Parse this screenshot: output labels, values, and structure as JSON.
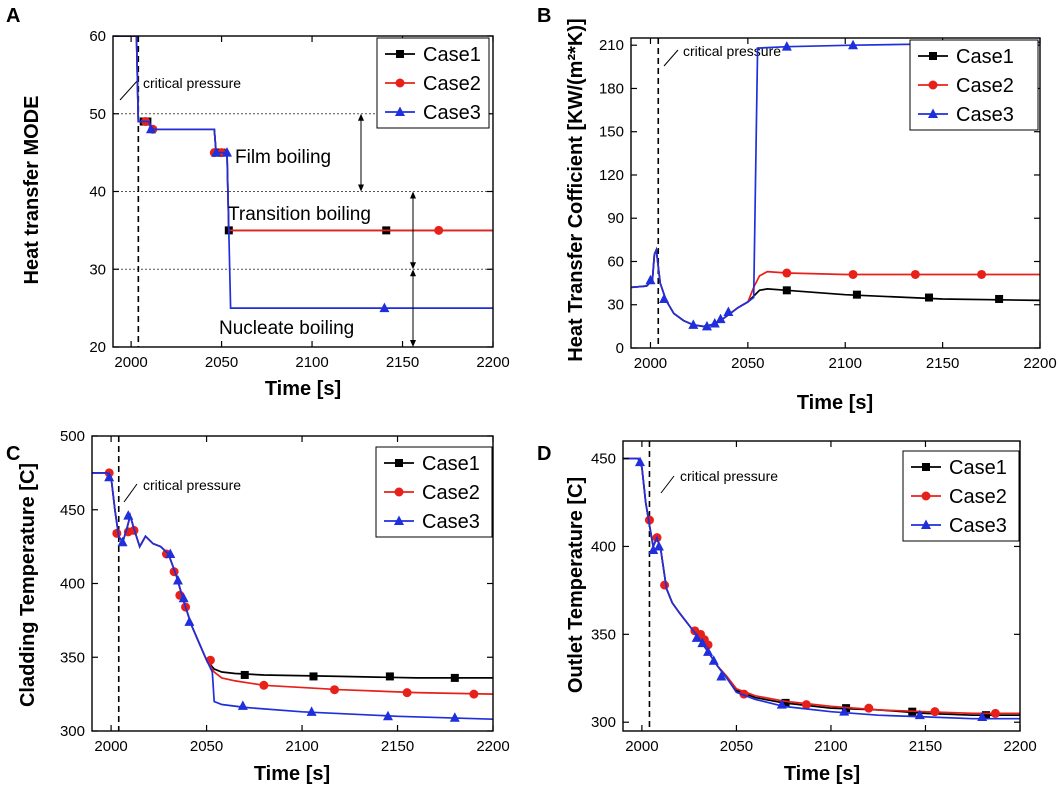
{
  "colors": {
    "Case1": "#000000",
    "Case2": "#e8201a",
    "Case3": "#1f2fdc"
  },
  "chart_data": [
    {
      "panel": "A",
      "type": "line",
      "xlabel": "Time [s]",
      "ylabel": "Heat transfer MODE",
      "xlim": [
        1990,
        2200
      ],
      "ylim": [
        20,
        60
      ],
      "xticks": [
        2000,
        2050,
        2100,
        2150,
        2200
      ],
      "yticks": [
        20,
        30,
        40,
        50,
        60
      ],
      "critical_time": 2004,
      "critical_label": "critical pressure",
      "hlines": [
        30,
        40,
        50
      ],
      "regions": [
        {
          "label": "Film boiling",
          "from": 40,
          "to": 50
        },
        {
          "label": "Transition boiling",
          "from": 30,
          "to": 40
        },
        {
          "label": "Nucleate boiling",
          "from": 20,
          "to": 30
        }
      ],
      "legend": [
        "Case1",
        "Case2",
        "Case3"
      ],
      "series": [
        {
          "name": "Case1",
          "x": [
            1990,
            2003,
            2004,
            2005,
            2006,
            2006,
            2010,
            2011,
            2046,
            2047,
            2053,
            2054,
            2200
          ],
          "y": [
            60,
            60,
            49,
            49,
            49,
            49,
            49,
            48,
            48,
            45,
            45,
            35,
            35
          ],
          "markers_x": [
            2007,
            2009,
            2047,
            2050,
            2054,
            2141
          ],
          "markers_y": [
            49,
            49,
            45,
            45,
            35,
            35
          ]
        },
        {
          "name": "Case2",
          "x": [
            1990,
            2003,
            2004,
            2005,
            2006,
            2010,
            2011,
            2046,
            2047,
            2053,
            2054,
            2200
          ],
          "y": [
            60,
            60,
            49,
            49,
            49,
            49,
            48,
            48,
            45,
            45,
            35,
            35
          ],
          "markers_x": [
            2008,
            2012,
            2046,
            2050,
            2170
          ],
          "markers_y": [
            49,
            48,
            45,
            45,
            35
          ]
        },
        {
          "name": "Case3",
          "x": [
            1990,
            2003,
            2004,
            2005,
            2006,
            2010,
            2011,
            2046,
            2047,
            2053,
            2054,
            2055,
            2200
          ],
          "y": [
            60,
            60,
            49,
            49,
            49,
            49,
            48,
            48,
            45,
            45,
            35,
            25,
            25
          ],
          "markers_x": [
            2011,
            2047,
            2053,
            2140
          ],
          "markers_y": [
            48,
            45,
            45,
            25
          ]
        }
      ]
    },
    {
      "panel": "B",
      "type": "line",
      "xlabel": "Time [s]",
      "ylabel": "Heat Transfer Cofficient [KW/(m²*K)]",
      "xlim": [
        1990,
        2200
      ],
      "ylim": [
        0,
        215
      ],
      "xticks": [
        2000,
        2050,
        2100,
        2150,
        2200
      ],
      "yticks": [
        0,
        30,
        60,
        90,
        120,
        150,
        180,
        210
      ],
      "critical_time": 2004,
      "critical_label": "critical pressure",
      "legend": [
        "Case1",
        "Case2",
        "Case3"
      ],
      "series": [
        {
          "name": "Case1",
          "x": [
            1990,
            1998,
            2001,
            2002,
            2003,
            2005,
            2008,
            2012,
            2017,
            2022,
            2027,
            2031,
            2035,
            2040,
            2045,
            2050,
            2053,
            2056,
            2060,
            2070,
            2100,
            2150,
            2200
          ],
          "y": [
            42,
            43,
            47,
            65,
            68,
            45,
            33,
            24,
            19,
            16,
            15,
            16,
            18,
            23,
            28,
            32,
            36,
            40,
            41,
            40,
            37,
            34,
            33
          ],
          "markers_x": [
            2070,
            2106,
            2143,
            2179
          ],
          "markers_y": [
            40,
            37,
            35,
            34
          ]
        },
        {
          "name": "Case2",
          "x": [
            1990,
            1998,
            2001,
            2002,
            2003,
            2005,
            2008,
            2012,
            2017,
            2022,
            2027,
            2031,
            2035,
            2040,
            2045,
            2050,
            2053,
            2056,
            2060,
            2070,
            2100,
            2150,
            2200
          ],
          "y": [
            42,
            43,
            47,
            65,
            68,
            45,
            33,
            24,
            19,
            16,
            15,
            16,
            18,
            23,
            28,
            32,
            42,
            50,
            53,
            52,
            51,
            51,
            51
          ],
          "markers_x": [
            2070,
            2104,
            2136,
            2170
          ],
          "markers_y": [
            52,
            51,
            51,
            51
          ]
        },
        {
          "name": "Case3",
          "x": [
            1990,
            1998,
            2001,
            2002,
            2003,
            2005,
            2008,
            2012,
            2017,
            2022,
            2027,
            2031,
            2035,
            2040,
            2045,
            2050,
            2053,
            2054,
            2055,
            2070,
            2104,
            2150,
            2200
          ],
          "y": [
            42,
            43,
            47,
            65,
            68,
            45,
            33,
            24,
            19,
            16,
            15,
            16,
            18,
            23,
            28,
            32,
            35,
            120,
            208,
            209,
            210,
            211,
            212
          ],
          "markers_x": [
            2000,
            2007,
            2022,
            2029,
            2033,
            2036,
            2040,
            2070,
            2104
          ],
          "markers_y": [
            47,
            34,
            16,
            15,
            17,
            20,
            25,
            209,
            210
          ]
        }
      ]
    },
    {
      "panel": "C",
      "type": "line",
      "xlabel": "Time [s]",
      "ylabel": "Cladding Temperature [C]",
      "xlim": [
        1990,
        2200
      ],
      "ylim": [
        300,
        500
      ],
      "xticks": [
        2000,
        2050,
        2100,
        2150,
        2200
      ],
      "yticks": [
        300,
        350,
        400,
        450,
        500
      ],
      "critical_time": 2004,
      "critical_label": "critical pressure",
      "legend": [
        "Case1",
        "Case2",
        "Case3"
      ],
      "series": [
        {
          "name": "Case1",
          "x": [
            1990,
            1998,
            2000,
            2002,
            2004,
            2006,
            2008,
            2010,
            2012,
            2015,
            2018,
            2022,
            2026,
            2030,
            2034,
            2038,
            2042,
            2046,
            2050,
            2054,
            2058,
            2065,
            2080,
            2120,
            2160,
            2200
          ],
          "y": [
            475,
            475,
            472,
            450,
            432,
            428,
            436,
            446,
            437,
            425,
            432,
            427,
            425,
            420,
            406,
            388,
            372,
            360,
            348,
            342,
            340,
            339,
            338,
            337,
            336,
            336
          ],
          "markers_x": [
            2070,
            2106,
            2146,
            2180
          ],
          "markers_y": [
            338,
            337,
            337,
            336
          ]
        },
        {
          "name": "Case2",
          "x": [
            1990,
            1998,
            2000,
            2002,
            2004,
            2006,
            2008,
            2010,
            2012,
            2015,
            2018,
            2022,
            2026,
            2030,
            2034,
            2038,
            2042,
            2046,
            2050,
            2054,
            2058,
            2065,
            2080,
            2120,
            2160,
            2200
          ],
          "y": [
            475,
            475,
            472,
            450,
            432,
            428,
            436,
            446,
            437,
            425,
            432,
            427,
            425,
            420,
            406,
            388,
            372,
            360,
            348,
            340,
            336,
            334,
            331,
            328,
            326,
            325
          ],
          "markers_x": [
            1999,
            2003,
            2009,
            2012,
            2029,
            2033,
            2036,
            2039,
            2052,
            2080,
            2117,
            2155,
            2190
          ],
          "markers_y": [
            475,
            434,
            435,
            436,
            420,
            408,
            392,
            384,
            348,
            331,
            328,
            326,
            325
          ]
        },
        {
          "name": "Case3",
          "x": [
            1990,
            1998,
            2000,
            2002,
            2004,
            2006,
            2008,
            2010,
            2012,
            2015,
            2018,
            2022,
            2026,
            2030,
            2034,
            2038,
            2042,
            2046,
            2050,
            2053,
            2054,
            2058,
            2070,
            2100,
            2150,
            2200
          ],
          "y": [
            475,
            475,
            472,
            450,
            432,
            428,
            436,
            446,
            437,
            425,
            432,
            427,
            425,
            420,
            406,
            388,
            372,
            360,
            348,
            340,
            320,
            318,
            316,
            313,
            310,
            308
          ],
          "markers_x": [
            1999,
            2006,
            2009,
            2031,
            2035,
            2038,
            2041,
            2069,
            2105,
            2145,
            2180
          ],
          "markers_y": [
            472,
            428,
            446,
            420,
            402,
            390,
            374,
            317,
            313,
            310,
            309
          ]
        }
      ]
    },
    {
      "panel": "D",
      "type": "line",
      "xlabel": "Time [s]",
      "ylabel": "Outlet Temperature [C]",
      "xlim": [
        1990,
        2200
      ],
      "ylim": [
        295,
        460
      ],
      "xticks": [
        2000,
        2050,
        2100,
        2150,
        2200
      ],
      "yticks": [
        300,
        350,
        400,
        450
      ],
      "critical_time": 2004,
      "critical_label": "critical pressure",
      "legend": [
        "Case1",
        "Case2",
        "Case3"
      ],
      "series": [
        {
          "name": "Case1",
          "x": [
            1990,
            1998,
            2000,
            2002,
            2004,
            2006,
            2008,
            2010,
            2013,
            2016,
            2020,
            2025,
            2030,
            2035,
            2040,
            2045,
            2050,
            2060,
            2075,
            2100,
            2125,
            2150,
            2175,
            2200
          ],
          "y": [
            450,
            450,
            445,
            425,
            412,
            400,
            405,
            398,
            376,
            368,
            362,
            355,
            348,
            340,
            332,
            325,
            318,
            314,
            311,
            308,
            307,
            305,
            304,
            304
          ],
          "markers_x": [
            2076,
            2108,
            2143,
            2182
          ],
          "markers_y": [
            311,
            308,
            306,
            304
          ]
        },
        {
          "name": "Case2",
          "x": [
            1990,
            1998,
            2000,
            2002,
            2004,
            2006,
            2008,
            2010,
            2013,
            2016,
            2020,
            2025,
            2030,
            2035,
            2040,
            2045,
            2050,
            2060,
            2075,
            2100,
            2125,
            2150,
            2175,
            2200
          ],
          "y": [
            450,
            450,
            445,
            425,
            412,
            400,
            405,
            398,
            376,
            368,
            362,
            355,
            348,
            340,
            332,
            326,
            319,
            315,
            312,
            309,
            307,
            306,
            305,
            305
          ],
          "markers_x": [
            2004,
            2008,
            2012,
            2028,
            2031,
            2033,
            2035,
            2054,
            2087,
            2120,
            2155,
            2187
          ],
          "markers_y": [
            415,
            405,
            378,
            352,
            350,
            347,
            344,
            316,
            310,
            308,
            306,
            305
          ]
        },
        {
          "name": "Case3",
          "x": [
            1990,
            1998,
            2000,
            2002,
            2004,
            2006,
            2008,
            2010,
            2013,
            2016,
            2020,
            2025,
            2030,
            2035,
            2040,
            2045,
            2050,
            2060,
            2075,
            2100,
            2125,
            2150,
            2175,
            2200
          ],
          "y": [
            450,
            450,
            445,
            425,
            412,
            400,
            405,
            398,
            376,
            368,
            362,
            355,
            348,
            340,
            332,
            325,
            317,
            313,
            309,
            306,
            304,
            303,
            302,
            302
          ],
          "markers_x": [
            1999,
            2006,
            2009,
            2029,
            2032,
            2035,
            2038,
            2042,
            2074,
            2107,
            2147,
            2180
          ],
          "markers_y": [
            448,
            398,
            400,
            348,
            345,
            340,
            335,
            326,
            310,
            306,
            304,
            303
          ]
        }
      ]
    }
  ]
}
